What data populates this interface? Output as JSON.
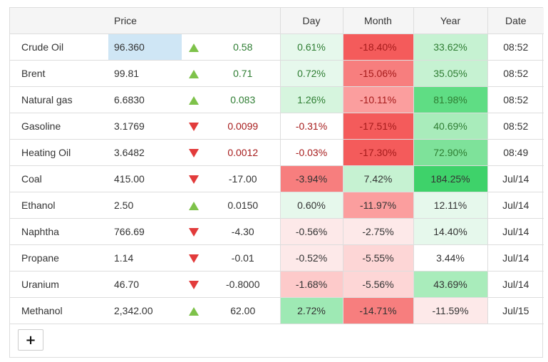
{
  "header": {
    "name": "",
    "price": "Price",
    "arrow": "",
    "change": "",
    "day": "Day",
    "month": "Month",
    "year": "Year",
    "date": "Date"
  },
  "colors": {
    "price_highlight": "#cfe6f5",
    "strong_red": "#f45b5b",
    "red": "#f77e7e",
    "light_red": "#fb9e9e",
    "pale_red": "#fdcaca",
    "faint_red": "#fde9e9",
    "strong_green": "#3ed26a",
    "green": "#5fdd84",
    "mid_green": "#7ee29a",
    "light_green": "#a9ecbb",
    "pale_green": "#c6f2d2",
    "faint_green": "#e6f8ec"
  },
  "icons": {
    "up": "triangle-up-icon",
    "down": "triangle-down-icon",
    "add": "plus-icon"
  },
  "add_button_label": "+",
  "rows": [
    {
      "name": "Crude Oil",
      "price": "96.360",
      "dir": "up",
      "change": "0.58",
      "day": "0.61%",
      "month": "-18.40%",
      "year": "33.62%",
      "date": "08:52",
      "dayColor": "#e6f8ec",
      "monthColor": "#f45b5b",
      "yearColor": "#c6f2d2",
      "priceColor": "#cfe6f5",
      "changeClass": "up",
      "dayClass": "up",
      "monthClass": "down",
      "yearClass": "up"
    },
    {
      "name": "Brent",
      "price": "99.81",
      "dir": "up",
      "change": "0.71",
      "day": "0.72%",
      "month": "-15.06%",
      "year": "35.05%",
      "date": "08:52",
      "dayColor": "#e6f8ec",
      "monthColor": "#f77e7e",
      "yearColor": "#c6f2d2",
      "priceColor": "",
      "changeClass": "up",
      "dayClass": "up",
      "monthClass": "down",
      "yearClass": "up"
    },
    {
      "name": "Natural gas",
      "price": "6.6830",
      "dir": "up",
      "change": "0.083",
      "day": "1.26%",
      "month": "-10.11%",
      "year": "81.98%",
      "date": "08:52",
      "dayColor": "#d6f5de",
      "monthColor": "#fb9e9e",
      "yearColor": "#5fdd84",
      "priceColor": "",
      "changeClass": "up",
      "dayClass": "up",
      "monthClass": "down",
      "yearClass": "up"
    },
    {
      "name": "Gasoline",
      "price": "3.1769",
      "dir": "down",
      "change": "0.0099",
      "day": "-0.31%",
      "month": "-17.51%",
      "year": "40.69%",
      "date": "08:52",
      "dayColor": "",
      "monthColor": "#f45b5b",
      "yearColor": "#a9ecbb",
      "priceColor": "",
      "changeClass": "down",
      "dayClass": "down",
      "monthClass": "down",
      "yearClass": "up"
    },
    {
      "name": "Heating Oil",
      "price": "3.6482",
      "dir": "down",
      "change": "0.0012",
      "day": "-0.03%",
      "month": "-17.30%",
      "year": "72.90%",
      "date": "08:49",
      "dayColor": "",
      "monthColor": "#f45b5b",
      "yearColor": "#7ee29a",
      "priceColor": "",
      "changeClass": "down",
      "dayClass": "down",
      "monthClass": "down",
      "yearClass": "up"
    },
    {
      "name": "Coal",
      "price": "415.00",
      "dir": "down",
      "change": "-17.00",
      "day": "-3.94%",
      "month": "7.42%",
      "year": "184.25%",
      "date": "Jul/14",
      "dayColor": "#f77e7e",
      "monthColor": "#c6f2d2",
      "yearColor": "#3ed26a",
      "priceColor": "",
      "changeClass": "neutral",
      "dayClass": "neutral",
      "monthClass": "neutral",
      "yearClass": "neutral"
    },
    {
      "name": "Ethanol",
      "price": "2.50",
      "dir": "up",
      "change": "0.0150",
      "day": "0.60%",
      "month": "-11.97%",
      "year": "12.11%",
      "date": "Jul/14",
      "dayColor": "#e6f8ec",
      "monthColor": "#fb9e9e",
      "yearColor": "#e6f8ec",
      "priceColor": "",
      "changeClass": "neutral",
      "dayClass": "neutral",
      "monthClass": "neutral",
      "yearClass": "neutral"
    },
    {
      "name": "Naphtha",
      "price": "766.69",
      "dir": "down",
      "change": "-4.30",
      "day": "-0.56%",
      "month": "-2.75%",
      "year": "14.40%",
      "date": "Jul/14",
      "dayColor": "#fde9e9",
      "monthColor": "#fde9e9",
      "yearColor": "#e6f8ec",
      "priceColor": "",
      "changeClass": "neutral",
      "dayClass": "neutral",
      "monthClass": "neutral",
      "yearClass": "neutral"
    },
    {
      "name": "Propane",
      "price": "1.14",
      "dir": "down",
      "change": "-0.01",
      "day": "-0.52%",
      "month": "-5.55%",
      "year": "3.44%",
      "date": "Jul/14",
      "dayColor": "#fde9e9",
      "monthColor": "#fdd6d6",
      "yearColor": "",
      "priceColor": "",
      "changeClass": "neutral",
      "dayClass": "neutral",
      "monthClass": "neutral",
      "yearClass": "neutral"
    },
    {
      "name": "Uranium",
      "price": "46.70",
      "dir": "down",
      "change": "-0.8000",
      "day": "-1.68%",
      "month": "-5.56%",
      "year": "43.69%",
      "date": "Jul/14",
      "dayColor": "#fdcaca",
      "monthColor": "#fdd6d6",
      "yearColor": "#a9ecbb",
      "priceColor": "",
      "changeClass": "neutral",
      "dayClass": "neutral",
      "monthClass": "neutral",
      "yearClass": "neutral"
    },
    {
      "name": "Methanol",
      "price": "2,342.00",
      "dir": "up",
      "change": "62.00",
      "day": "2.72%",
      "month": "-14.71%",
      "year": "-11.59%",
      "date": "Jul/15",
      "dayColor": "#9ee9b4",
      "monthColor": "#f77e7e",
      "yearColor": "#fde9e9",
      "priceColor": "",
      "changeClass": "neutral",
      "dayClass": "neutral",
      "monthClass": "neutral",
      "yearClass": "neutral"
    }
  ]
}
